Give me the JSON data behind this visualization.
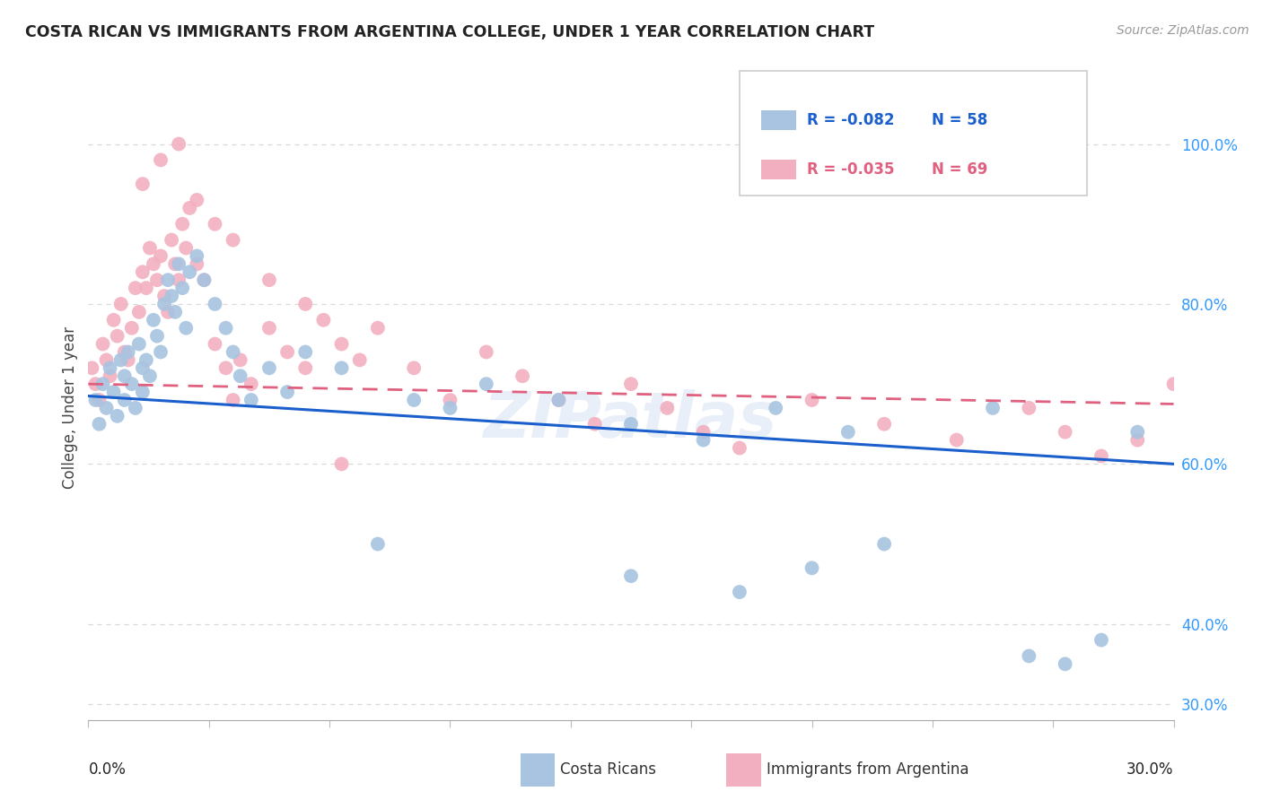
{
  "title": "COSTA RICAN VS IMMIGRANTS FROM ARGENTINA COLLEGE, UNDER 1 YEAR CORRELATION CHART",
  "source": "Source: ZipAtlas.com",
  "ylabel": "College, Under 1 year",
  "right_yticks": [
    "100.0%",
    "80.0%",
    "60.0%",
    "40.0%",
    "30.0%"
  ],
  "right_ytick_vals": [
    1.0,
    0.8,
    0.6,
    0.4,
    0.3
  ],
  "legend_blue_r": "-0.082",
  "legend_blue_n": "58",
  "legend_pink_r": "-0.035",
  "legend_pink_n": "69",
  "blue_color": "#a8c4e0",
  "pink_color": "#f2afc0",
  "line_blue_color": "#1a5fcc",
  "line_pink_color": "#e06080",
  "background_color": "#ffffff",
  "grid_color": "#d8d8d8",
  "xmin": 0.0,
  "xmax": 0.3,
  "ymin": 0.28,
  "ymax": 1.06,
  "blue_x": [
    0.002,
    0.003,
    0.004,
    0.005,
    0.006,
    0.007,
    0.008,
    0.009,
    0.01,
    0.01,
    0.011,
    0.012,
    0.013,
    0.014,
    0.015,
    0.015,
    0.016,
    0.017,
    0.018,
    0.019,
    0.02,
    0.021,
    0.022,
    0.023,
    0.024,
    0.025,
    0.026,
    0.027,
    0.028,
    0.03,
    0.032,
    0.035,
    0.038,
    0.04,
    0.042,
    0.045,
    0.05,
    0.055,
    0.06,
    0.07,
    0.08,
    0.09,
    0.1,
    0.11,
    0.13,
    0.15,
    0.17,
    0.19,
    0.21,
    0.25,
    0.26,
    0.27,
    0.28,
    0.29,
    0.15,
    0.18,
    0.2,
    0.22
  ],
  "blue_y": [
    0.68,
    0.65,
    0.7,
    0.67,
    0.72,
    0.69,
    0.66,
    0.73,
    0.71,
    0.68,
    0.74,
    0.7,
    0.67,
    0.75,
    0.72,
    0.69,
    0.73,
    0.71,
    0.78,
    0.76,
    0.74,
    0.8,
    0.83,
    0.81,
    0.79,
    0.85,
    0.82,
    0.77,
    0.84,
    0.86,
    0.83,
    0.8,
    0.77,
    0.74,
    0.71,
    0.68,
    0.72,
    0.69,
    0.74,
    0.72,
    0.5,
    0.68,
    0.67,
    0.7,
    0.68,
    0.65,
    0.63,
    0.67,
    0.64,
    0.67,
    0.36,
    0.35,
    0.38,
    0.64,
    0.46,
    0.44,
    0.47,
    0.5
  ],
  "pink_x": [
    0.001,
    0.002,
    0.003,
    0.004,
    0.005,
    0.006,
    0.007,
    0.008,
    0.009,
    0.01,
    0.011,
    0.012,
    0.013,
    0.014,
    0.015,
    0.016,
    0.017,
    0.018,
    0.019,
    0.02,
    0.021,
    0.022,
    0.023,
    0.024,
    0.025,
    0.026,
    0.027,
    0.028,
    0.03,
    0.032,
    0.035,
    0.038,
    0.04,
    0.042,
    0.045,
    0.05,
    0.055,
    0.06,
    0.065,
    0.07,
    0.075,
    0.08,
    0.09,
    0.1,
    0.11,
    0.12,
    0.13,
    0.14,
    0.15,
    0.16,
    0.17,
    0.18,
    0.2,
    0.22,
    0.24,
    0.26,
    0.27,
    0.28,
    0.29,
    0.3,
    0.015,
    0.02,
    0.025,
    0.03,
    0.035,
    0.04,
    0.05,
    0.06,
    0.07
  ],
  "pink_y": [
    0.72,
    0.7,
    0.68,
    0.75,
    0.73,
    0.71,
    0.78,
    0.76,
    0.8,
    0.74,
    0.73,
    0.77,
    0.82,
    0.79,
    0.84,
    0.82,
    0.87,
    0.85,
    0.83,
    0.86,
    0.81,
    0.79,
    0.88,
    0.85,
    0.83,
    0.9,
    0.87,
    0.92,
    0.85,
    0.83,
    0.75,
    0.72,
    0.68,
    0.73,
    0.7,
    0.77,
    0.74,
    0.72,
    0.78,
    0.75,
    0.73,
    0.77,
    0.72,
    0.68,
    0.74,
    0.71,
    0.68,
    0.65,
    0.7,
    0.67,
    0.64,
    0.62,
    0.68,
    0.65,
    0.63,
    0.67,
    0.64,
    0.61,
    0.63,
    0.7,
    0.95,
    0.98,
    1.0,
    0.93,
    0.9,
    0.88,
    0.83,
    0.8,
    0.6
  ],
  "watermark": "ZIPatlas"
}
